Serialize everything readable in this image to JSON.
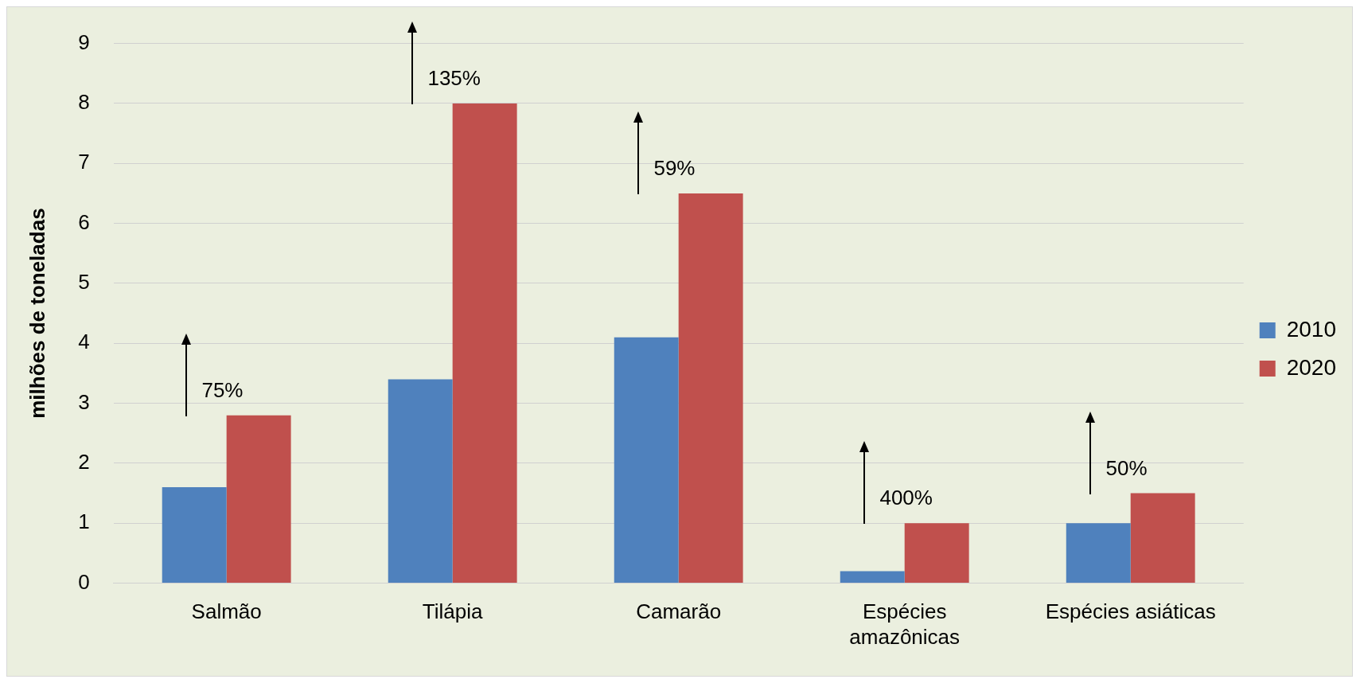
{
  "chart_data": {
    "type": "bar",
    "ylabel": "milhões de toneladas",
    "categories": [
      "Salmão",
      "Tilápia",
      "Camarão",
      "Espécies\namazônicas",
      "Espécies asiáticas"
    ],
    "series": [
      {
        "name": "2010",
        "color": "#4f81bd",
        "values": [
          1.6,
          3.4,
          4.1,
          0.2,
          1.0
        ]
      },
      {
        "name": "2020",
        "color": "#c0504d",
        "values": [
          2.8,
          8.0,
          6.5,
          1.0,
          1.5
        ]
      }
    ],
    "ylim": [
      0,
      9
    ],
    "yticks": [
      0,
      1,
      2,
      3,
      4,
      5,
      6,
      7,
      8,
      9
    ],
    "grid": "y",
    "legend": "right",
    "annotations": [
      "75%",
      "135%",
      "59%",
      "400%",
      "50%"
    ]
  }
}
